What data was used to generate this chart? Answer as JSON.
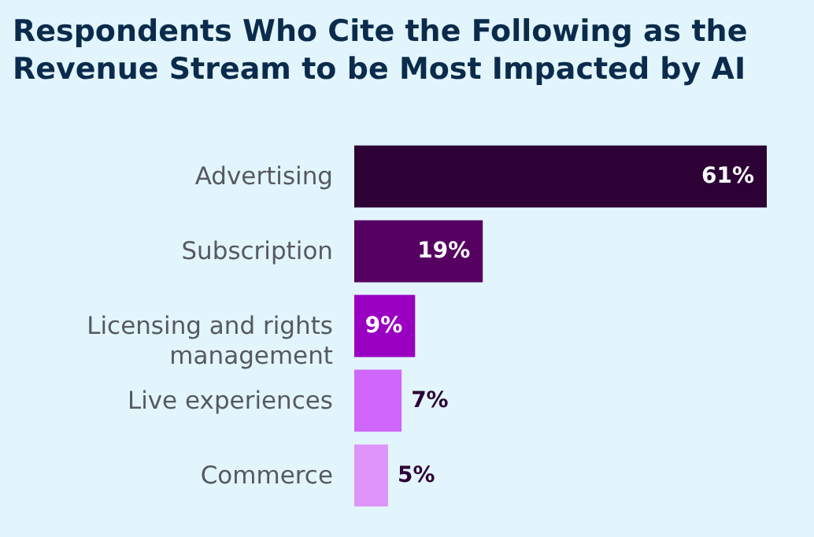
{
  "chart_data": {
    "type": "bar",
    "orientation": "horizontal",
    "title": "Respondents Who Cite the Following as the Revenue Stream to be Most Impacted by AI",
    "categories": [
      "Advertising",
      "Subscription",
      "Licensing and rights management",
      "Live experiences",
      "Commerce"
    ],
    "values": [
      61,
      19,
      9,
      7,
      5
    ],
    "colors": [
      "#2d0036",
      "#560061",
      "#9a00c2",
      "#d066fc",
      "#de94f9"
    ],
    "value_labels": [
      "61%",
      "19%",
      "9%",
      "7%",
      "5%"
    ]
  }
}
